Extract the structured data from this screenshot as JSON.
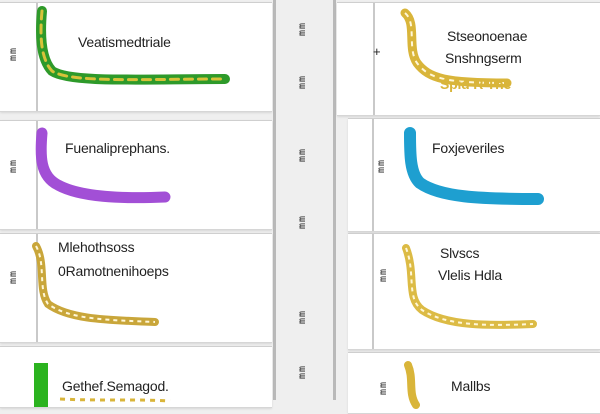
{
  "panels": [
    {
      "label": "Veatismedtriale",
      "sub_label": "",
      "side_text": "mm",
      "color_hex": "#2e9a2a",
      "glyph_name": "serpent-stroke-icon"
    },
    {
      "label": "Stseonoenae",
      "sub_label": "Snshngserm",
      "extra_label": "Spid R The",
      "side_text": "+",
      "color_hex": "#d9b53a",
      "glyph_name": "serpent-stroke-icon"
    },
    {
      "label": "Fuenaliprephans.",
      "sub_label": "",
      "side_text": "mm",
      "color_hex": "#a24fd6",
      "glyph_name": "serpent-stroke-icon"
    },
    {
      "label": "Foxjeveriles",
      "sub_label": "",
      "side_text": "mm",
      "color_hex": "#1e9fd0",
      "glyph_name": "serpent-stroke-icon"
    },
    {
      "label": "Mlehothsoss",
      "sub_label": "0Ramotnenihoeps",
      "side_text": "mm",
      "color_hex": "#c9a63a",
      "glyph_name": "serpent-stroke-icon"
    },
    {
      "label": "Slvscs",
      "sub_label": "Vlelis Hdla",
      "side_text": "mm",
      "color_hex": "#dcbb45",
      "glyph_name": "serpent-stroke-icon"
    },
    {
      "label": "Gethef.Semagod.",
      "sub_label": "",
      "side_text": "mm",
      "color_hex": "#2bb31f",
      "glyph_name": "bar-stroke-icon"
    },
    {
      "label": "Mallbs",
      "sub_label": "",
      "side_text": "mm",
      "color_hex": "#d9b53a",
      "glyph_name": "serpent-stroke-icon"
    }
  ],
  "divider_text": [
    "mm",
    "mm",
    "mm",
    "mm",
    "mm",
    "mm"
  ]
}
